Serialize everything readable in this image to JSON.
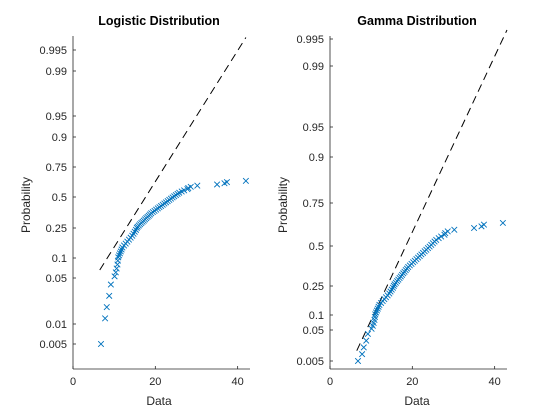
{
  "chart_data": [
    {
      "type": "scatter",
      "title": "Logistic Distribution",
      "xlabel": "Data",
      "ylabel": "Probability",
      "xlim": [
        0,
        43
      ],
      "x_ticks": [
        "0",
        "20",
        "40"
      ],
      "y_ticks": [
        "0.005",
        "0.01",
        "0.05",
        "0.1",
        "0.25",
        "0.5",
        "0.75",
        "0.9",
        "0.95",
        "0.99",
        "0.995"
      ],
      "y_scale": "logit",
      "marker_color": "#0072BD",
      "reference_line_color": "#000000",
      "reference_line_style": "dashed",
      "reference_line": {
        "x": [
          6.5,
          42
        ],
        "y": [
          0.07,
          0.9975
        ]
      },
      "series": [
        {
          "marker": "x",
          "x": [
            6.8,
            7.8,
            8.2,
            8.8,
            9.2,
            10.1,
            10.4,
            10.6,
            10.8,
            10.9,
            11.0,
            11.2,
            11.4,
            11.6,
            11.8,
            12.0,
            12.4,
            12.8,
            13.2,
            13.6,
            14.0,
            14.4,
            14.7,
            15.0,
            15.3,
            15.5,
            15.7,
            16.0,
            16.3,
            16.6,
            16.9,
            17.2,
            17.5,
            17.8,
            18.1,
            18.4,
            18.7,
            19.0,
            19.4,
            19.8,
            20.2,
            20.6,
            21.0,
            21.4,
            21.8,
            22.2,
            22.6,
            23.0,
            23.4,
            23.8,
            24.2,
            24.6,
            25.0,
            25.4,
            25.8,
            26.4,
            27.0,
            27.8,
            28.0,
            28.6,
            30.2,
            35.0,
            36.8,
            37.4,
            42.0
          ],
          "y": [
            0.005,
            0.0149,
            0.0247,
            0.0345,
            0.0443,
            0.0542,
            0.064,
            0.0738,
            0.0837,
            0.0935,
            0.1033,
            0.1131,
            0.123,
            0.1328,
            0.1426,
            0.1525,
            0.1623,
            0.1721,
            0.1819,
            0.1918,
            0.2016,
            0.2114,
            0.2213,
            0.2311,
            0.2409,
            0.2507,
            0.2606,
            0.2704,
            0.2802,
            0.2901,
            0.2999,
            0.3097,
            0.3195,
            0.3294,
            0.3392,
            0.349,
            0.3589,
            0.3687,
            0.3785,
            0.3883,
            0.3982,
            0.408,
            0.4178,
            0.4277,
            0.4375,
            0.4473,
            0.4571,
            0.467,
            0.4768,
            0.4866,
            0.4965,
            0.5063,
            0.5161,
            0.5259,
            0.5358,
            0.5456,
            0.5554,
            0.5653,
            0.5751,
            0.5849,
            0.5947,
            0.6046,
            0.6144,
            0.6242,
            0.6341
          ]
        }
      ]
    },
    {
      "type": "scatter",
      "title": "Gamma Distribution",
      "xlabel": "Data",
      "ylabel": "Probability",
      "xlim": [
        0,
        43
      ],
      "x_ticks": [
        "0",
        "20",
        "40"
      ],
      "y_ticks": [
        "0.005",
        "0.05",
        "0.1",
        "0.25",
        "0.5",
        "0.75",
        "0.9",
        "0.95",
        "0.99",
        "0.995"
      ],
      "y_scale": "gamma-probability",
      "marker_color": "#0072BD",
      "reference_line_color": "#000000",
      "reference_line_style": "dashed",
      "reference_line": {
        "x": [
          6.5,
          43
        ],
        "y": [
          0.02,
          0.999
        ]
      },
      "series": [
        {
          "marker": "x",
          "x": [
            6.8,
            7.8,
            8.2,
            8.8,
            9.2,
            10.1,
            10.4,
            10.6,
            10.8,
            10.9,
            11.0,
            11.2,
            11.4,
            11.6,
            11.8,
            12.0,
            12.4,
            12.8,
            13.2,
            13.6,
            14.0,
            14.4,
            14.7,
            15.0,
            15.3,
            15.5,
            15.7,
            16.0,
            16.3,
            16.6,
            16.9,
            17.2,
            17.5,
            17.8,
            18.1,
            18.4,
            18.7,
            19.0,
            19.4,
            19.8,
            20.2,
            20.6,
            21.0,
            21.4,
            21.8,
            22.2,
            22.6,
            23.0,
            23.4,
            23.8,
            24.2,
            24.6,
            25.0,
            25.4,
            25.8,
            26.4,
            27.0,
            27.8,
            28.0,
            28.6,
            30.2,
            35.0,
            36.8,
            37.4,
            42.0
          ],
          "y": [
            0.005,
            0.0149,
            0.0247,
            0.0345,
            0.0443,
            0.0542,
            0.064,
            0.0738,
            0.0837,
            0.0935,
            0.1033,
            0.1131,
            0.123,
            0.1328,
            0.1426,
            0.1525,
            0.1623,
            0.1721,
            0.1819,
            0.1918,
            0.2016,
            0.2114,
            0.2213,
            0.2311,
            0.2409,
            0.2507,
            0.2606,
            0.2704,
            0.2802,
            0.2901,
            0.2999,
            0.3097,
            0.3195,
            0.3294,
            0.3392,
            0.349,
            0.3589,
            0.3687,
            0.3785,
            0.3883,
            0.3982,
            0.408,
            0.4178,
            0.4277,
            0.4375,
            0.4473,
            0.4571,
            0.467,
            0.4768,
            0.4866,
            0.4965,
            0.5063,
            0.5161,
            0.5259,
            0.5358,
            0.5456,
            0.5554,
            0.5653,
            0.5751,
            0.5849,
            0.5947,
            0.6046,
            0.6144,
            0.6242,
            0.6341
          ]
        }
      ]
    }
  ]
}
